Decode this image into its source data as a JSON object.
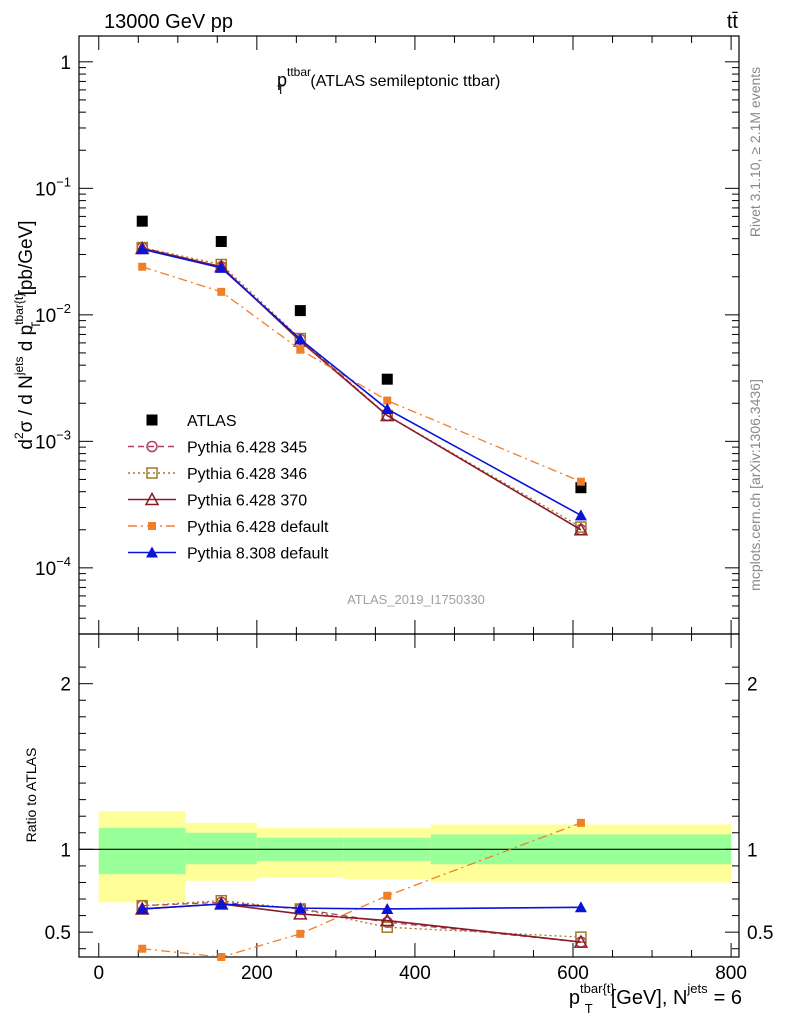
{
  "header": {
    "left": "13000 GeV pp",
    "right": "tt̄"
  },
  "side_texts": {
    "rivet": "Rivet 3.1.10, ≥ 2.1M events",
    "mcplots": "mcplots.cern.ch [arXiv:1306.3436]"
  },
  "colors": {
    "atlas": "#000000",
    "p345": "#b0415f",
    "p346": "#a0782a",
    "p370": "#8b1a2a",
    "p6def": "#f07f2a",
    "p8def": "#0a14d8",
    "band_inner": "#99ff99",
    "band_outer": "#ffff99"
  },
  "chart_data": [
    {
      "type": "scatter",
      "panel": "main",
      "title": "p_T^ttbar (ATLAS semileptonic ttbar)",
      "title_main": "p",
      "title_sup": "ttbar",
      "title_sub": "T",
      "title_rest": "(ATLAS semileptonic ttbar)",
      "ylabel": "d²σ / d N^jets d p^tbar{t}_T [pb/GeV]",
      "yscale": "log",
      "ylim": [
        3e-05,
        1.6
      ],
      "xlim": [
        -25,
        810
      ],
      "watermark": "ATLAS_2019_I1750330",
      "x": [
        55,
        155,
        255,
        365,
        610
      ],
      "series": [
        {
          "name": "ATLAS",
          "key": "atlas",
          "values": [
            0.055,
            0.038,
            0.0108,
            0.0031,
            0.00043
          ]
        },
        {
          "name": "Pythia 6.428 345",
          "key": "p345",
          "values": [
            0.034,
            0.024,
            0.0064,
            0.0016,
            0.0002
          ]
        },
        {
          "name": "Pythia 6.428 346",
          "key": "p346",
          "values": [
            0.034,
            0.025,
            0.0065,
            0.0016,
            0.00021
          ]
        },
        {
          "name": "Pythia 6.428 370",
          "key": "p370",
          "values": [
            0.0335,
            0.024,
            0.0062,
            0.0016,
            0.0002
          ]
        },
        {
          "name": "Pythia 6.428 default",
          "key": "p6def",
          "values": [
            0.024,
            0.0152,
            0.0053,
            0.0021,
            0.00048
          ]
        },
        {
          "name": "Pythia 8.308 default",
          "key": "p8def",
          "values": [
            0.033,
            0.0235,
            0.0064,
            0.0018,
            0.00026
          ]
        }
      ]
    },
    {
      "type": "line",
      "panel": "ratio",
      "ylabel": "Ratio to ATLAS",
      "xlabel": "p^tbar{t}_T [GeV], N^jets = 6",
      "xlabel_main": "p",
      "xlabel_sup": "tbar{t}",
      "xlabel_sub": "T",
      "xlabel_rest": "[GeV], N",
      "xlabel_sup2": "jets",
      "xlabel_end": "= 6",
      "ylim": [
        0.35,
        2.3
      ],
      "xlim": [
        -25,
        810
      ],
      "x": [
        55,
        155,
        255,
        365,
        610
      ],
      "band_bins": [
        0,
        110,
        200,
        310,
        420,
        800
      ],
      "band_inner": [
        [
          0.85,
          1.13
        ],
        [
          0.91,
          1.1
        ],
        [
          0.93,
          1.07
        ],
        [
          0.93,
          1.07
        ],
        [
          0.91,
          1.09
        ]
      ],
      "band_outer": [
        [
          0.68,
          1.23
        ],
        [
          0.81,
          1.16
        ],
        [
          0.83,
          1.13
        ],
        [
          0.82,
          1.13
        ],
        [
          0.8,
          1.15
        ]
      ],
      "series": [
        {
          "name": "Pythia 6.428 345",
          "key": "p345",
          "values": [
            0.66,
            0.68,
            0.64,
            0.56,
            0.44
          ]
        },
        {
          "name": "Pythia 6.428 346",
          "key": "p346",
          "values": [
            0.66,
            0.69,
            0.64,
            0.53,
            0.47
          ]
        },
        {
          "name": "Pythia 6.428 370",
          "key": "p370",
          "values": [
            0.64,
            0.67,
            0.61,
            0.57,
            0.44
          ]
        },
        {
          "name": "Pythia 6.428 default",
          "key": "p6def",
          "values": [
            0.4,
            0.35,
            0.49,
            0.72,
            1.16
          ]
        },
        {
          "name": "Pythia 8.308 default",
          "key": "p8def",
          "values": [
            0.64,
            0.67,
            0.645,
            0.64,
            0.65
          ]
        }
      ],
      "y_ticks": [
        0.5,
        1,
        2
      ],
      "y_tick_labels": [
        "0.5",
        "1",
        "2"
      ],
      "x_ticks": [
        0,
        200,
        400,
        600,
        800
      ],
      "x_tick_labels": [
        "0",
        "200",
        "400",
        "600",
        "800"
      ]
    }
  ],
  "main_axis": {
    "tick_labels": [
      {
        "base": "1",
        "exp": ""
      },
      {
        "base": "10",
        "exp": "−1"
      },
      {
        "base": "10",
        "exp": "−2"
      },
      {
        "base": "10",
        "exp": "−3"
      },
      {
        "base": "10",
        "exp": "−4"
      }
    ]
  }
}
